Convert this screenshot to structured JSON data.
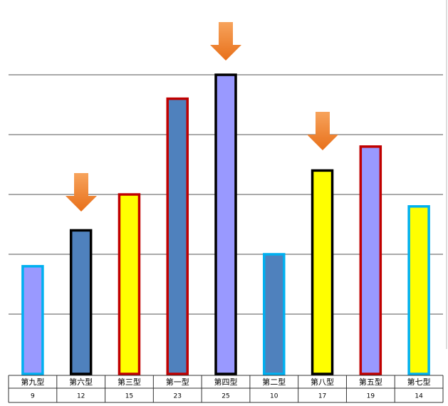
{
  "chart_data": {
    "type": "bar",
    "categories": [
      "第九型",
      "第六型",
      "第三型",
      "第一型",
      "第四型",
      "第二型",
      "第八型",
      "第五型",
      "第七型"
    ],
    "values": [
      9,
      12,
      15,
      23,
      25,
      10,
      17,
      19,
      14
    ],
    "colors": [
      "#9999ff",
      "#4f81bd",
      "#ffff00",
      "#4f81bd",
      "#9999ff",
      "#4f81bd",
      "#ffff00",
      "#9999ff",
      "#ffff00"
    ],
    "border_colors": [
      "#00b0f0",
      "#000000",
      "#c00000",
      "#c00000",
      "#000000",
      "#00b0f0",
      "#000000",
      "#c00000",
      "#00b0f0"
    ],
    "ylim": [
      0,
      30
    ],
    "yticks": [
      5,
      10,
      15,
      20,
      25
    ],
    "grid": true
  }
}
